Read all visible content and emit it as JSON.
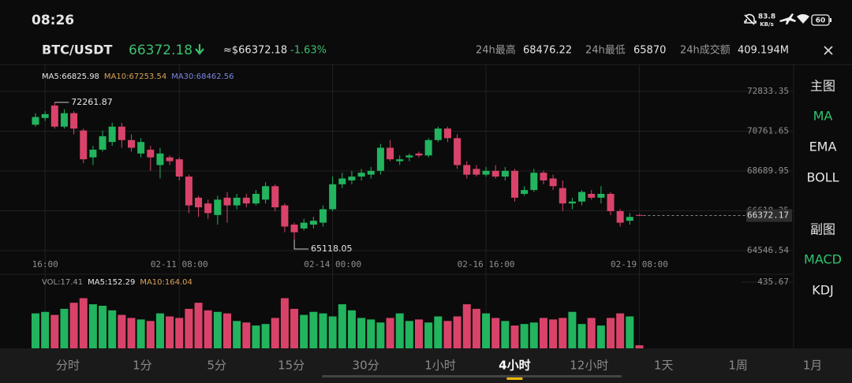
{
  "status_bar": {
    "time": "08:26",
    "speed": "83.8",
    "speed_unit": "KB/s",
    "battery": "60"
  },
  "header": {
    "pair": "BTC/USDT",
    "price": "66372.18",
    "fiat_price": "≈$66372.18",
    "change": "-1.63%",
    "stats": [
      {
        "label": "24h最高",
        "value": "68476.22"
      },
      {
        "label": "24h最低",
        "value": "65870"
      },
      {
        "label": "24h成交额",
        "value": "409.194M"
      }
    ]
  },
  "chart_data": {
    "type": "candlestick",
    "legend": [
      {
        "text": "MA5:66825.98",
        "color": "#e8e8e8"
      },
      {
        "text": "MA10:67253.54",
        "color": "#d8a15a"
      },
      {
        "text": "MA30:68462.56",
        "color": "#7b86e0"
      }
    ],
    "up_color": "#22b45e",
    "down_color": "#d9436a",
    "categories": [
      null,
      "16:00",
      null,
      null,
      null,
      null,
      null,
      null,
      null,
      null,
      null,
      null,
      null,
      null,
      null,
      "02-11 08:00",
      null,
      null,
      null,
      null,
      null,
      null,
      null,
      null,
      null,
      null,
      null,
      null,
      null,
      null,
      null,
      "02-14 00:00",
      null,
      null,
      null,
      null,
      null,
      null,
      null,
      null,
      null,
      null,
      null,
      null,
      null,
      null,
      null,
      "02-16 16:00",
      null,
      null,
      null,
      null,
      null,
      null,
      null,
      null,
      null,
      null,
      null,
      null,
      null,
      null,
      null,
      "02-19 08:00"
    ],
    "open": [
      71100,
      71450,
      72100,
      71000,
      71700,
      70800,
      69400,
      69800,
      70200,
      71000,
      70300,
      69600,
      69800,
      69000,
      69400,
      69300,
      68400,
      67300,
      67000,
      66400,
      67300,
      66900,
      67300,
      67000,
      67200,
      67900,
      66900,
      65900,
      65700,
      65900,
      66000,
      66700,
      68000,
      68200,
      68400,
      68500,
      68700,
      69900,
      69200,
      69400,
      69600,
      69500,
      70300,
      70900,
      70400,
      69000,
      68800,
      68500,
      68700,
      68400,
      68700,
      67500,
      67700,
      68600,
      68300,
      67800,
      67000,
      67100,
      67500,
      67300,
      67500,
      66600,
      66100,
      66400
    ],
    "high": [
      71700,
      71800,
      72261.87,
      71900,
      71800,
      70900,
      70000,
      70800,
      71200,
      71200,
      70600,
      70400,
      70000,
      69900,
      69500,
      69400,
      68500,
      67400,
      67200,
      67400,
      67600,
      67500,
      67500,
      67700,
      68100,
      68000,
      67000,
      66000,
      66200,
      66300,
      66900,
      68400,
      68600,
      68700,
      68800,
      68900,
      70100,
      70300,
      69500,
      69600,
      69700,
      70400,
      71000,
      71000,
      70600,
      69200,
      69000,
      68900,
      69000,
      68900,
      68800,
      67900,
      68800,
      68700,
      68500,
      68200,
      67300,
      67700,
      67700,
      67900,
      67600,
      66700,
      66500,
      66450
    ],
    "low": [
      71000,
      71300,
      70900,
      70900,
      70600,
      69100,
      69000,
      69700,
      70000,
      69900,
      69700,
      69400,
      68700,
      68300,
      69000,
      68200,
      66500,
      66300,
      66200,
      65900,
      66000,
      66700,
      66800,
      66900,
      67000,
      66600,
      65500,
      65118.05,
      65600,
      65700,
      65800,
      66600,
      67800,
      68000,
      68200,
      68300,
      68500,
      69200,
      69000,
      69200,
      69400,
      69400,
      70200,
      70200,
      68800,
      68300,
      68400,
      68400,
      68300,
      68200,
      67100,
      67400,
      67600,
      68000,
      67700,
      66600,
      66700,
      66900,
      67200,
      67000,
      66400,
      65800,
      65900,
      66350
    ],
    "close": [
      71500,
      71650,
      71000,
      71700,
      70900,
      69300,
      69800,
      70500,
      71000,
      70300,
      69900,
      70200,
      69400,
      69600,
      69200,
      68400,
      66900,
      66800,
      66500,
      67200,
      66900,
      67300,
      67000,
      67500,
      67900,
      66800,
      65800,
      65500,
      66000,
      66100,
      66700,
      68000,
      68300,
      68400,
      68600,
      68700,
      69900,
      69300,
      69300,
      69500,
      69500,
      70300,
      70900,
      70400,
      69000,
      68500,
      68500,
      68700,
      68400,
      68700,
      67300,
      67700,
      68600,
      68200,
      67900,
      67000,
      67100,
      67600,
      67300,
      67500,
      66600,
      66000,
      66300,
      66372.17
    ],
    "ylim": [
      64300,
      73500
    ],
    "yticks": [
      72833.35,
      70761.65,
      68689.95,
      66618.25,
      64546.54
    ],
    "annotations": {
      "high": 72261.87,
      "low": 65118.05,
      "last": 66372.17
    },
    "volume_legend": [
      {
        "text": "VOL:17.41",
        "color": "#9a9a9a"
      },
      {
        "text": "MA5:152.29",
        "color": "#e8e8e8"
      },
      {
        "text": "MA10:164.04",
        "color": "#d8a15a"
      }
    ],
    "volume": [
      230,
      240,
      220,
      260,
      300,
      330,
      290,
      280,
      250,
      220,
      200,
      190,
      180,
      230,
      210,
      200,
      260,
      300,
      250,
      240,
      230,
      180,
      170,
      150,
      160,
      200,
      330,
      260,
      220,
      240,
      230,
      210,
      290,
      250,
      200,
      190,
      170,
      200,
      230,
      180,
      190,
      170,
      210,
      180,
      210,
      290,
      260,
      230,
      200,
      180,
      150,
      160,
      170,
      200,
      190,
      200,
      240,
      160,
      200,
      150,
      200,
      230,
      210,
      20
    ],
    "volume_ylim": [
      0,
      435.67
    ],
    "volume_yticks": [
      435.67
    ]
  },
  "side_menu": {
    "main_title": "主图",
    "main_items": [
      "MA",
      "EMA",
      "BOLL"
    ],
    "sub_title": "副图",
    "sub_items": [
      "MACD",
      "KDJ"
    ],
    "active": [
      "MA",
      "MACD"
    ]
  },
  "bottom_tabs": {
    "items": [
      "分时",
      "1分",
      "5分",
      "15分",
      "30分",
      "1小时",
      "4小时",
      "12小时",
      "1天",
      "1周",
      "1月"
    ],
    "active": "4小时"
  }
}
